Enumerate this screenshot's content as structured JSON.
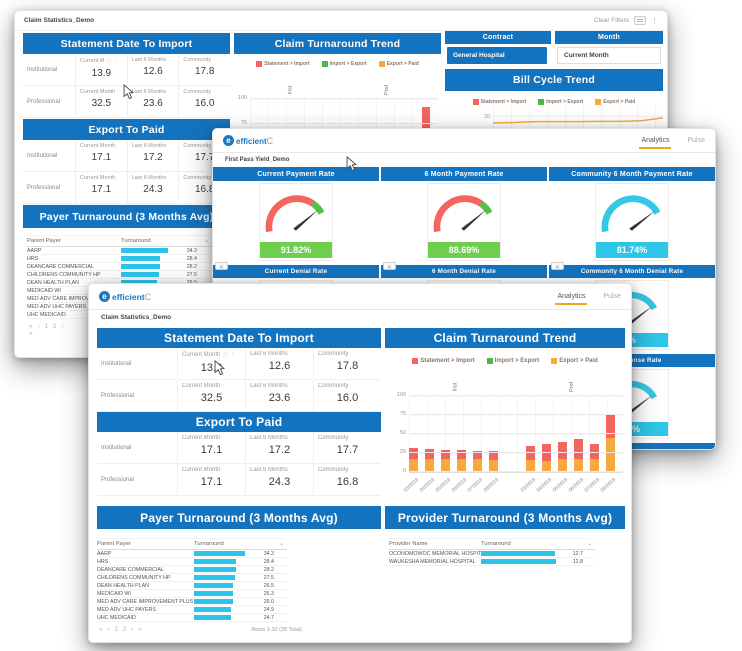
{
  "colors": {
    "header_blue": "#1473BE",
    "bar_cyan": "#2BC4E8",
    "red": "#F4655F",
    "green": "#4CB648",
    "orange": "#F5A93F",
    "badge_green": "#6FCE4E",
    "badge_cyan": "#2EC6E8",
    "tab_underline": "#F2A71B"
  },
  "brand": {
    "icon": "e",
    "name": "efficient",
    "suffix": "C"
  },
  "tabs": {
    "analytics": "Analytics",
    "pulse": "Pulse"
  },
  "icons": {
    "info": "ⓘ",
    "kebab": "⋮",
    "sort": "⌄",
    "menu_kebab": "⋮"
  },
  "shared": {
    "statement_title": "Statement Date To Import",
    "export_title": "Export To Paid",
    "payer_title": "Payer Turnaround (3 Months Avg)",
    "provider_title": "Provider Turnaround (3 Months Avg)",
    "trend_title": "Claim Turnaround Trend",
    "labels": {
      "institutional": "Institutional",
      "professional": "Professional",
      "current_month": "Current Month",
      "current_month_short": "Current M",
      "last_6_months": "Last 6 Months",
      "community": "Community"
    },
    "statement": {
      "inst": [
        "13.9",
        "12.6",
        "17.8"
      ],
      "prof": [
        "32.5",
        "23.6",
        "16.0"
      ]
    },
    "export": {
      "inst": [
        "17.1",
        "17.2",
        "17.7"
      ],
      "prof": [
        "17.1",
        "24.3",
        "16.8"
      ]
    },
    "legend": [
      {
        "label": "Statement > Import",
        "color": "#F4655F"
      },
      {
        "label": "Import > Export",
        "color": "#4CB648"
      },
      {
        "label": "Export > Paid",
        "color": "#F5A93F"
      }
    ],
    "payer": {
      "name_header": "Parent Payer",
      "value_header": "Turnaround",
      "rows": [
        {
          "name": "AARP",
          "value": "34.3"
        },
        {
          "name": "HRS",
          "value": "28.4"
        },
        {
          "name": "DEANCARE COMMERCIAL",
          "value": "28.2"
        },
        {
          "name": "CHILDRENS COMMUNITY HP",
          "value": "27.5"
        },
        {
          "name": "DEAN HEALTH PLAN",
          "value": "26.5"
        },
        {
          "name": "MEDICAID WI",
          "value": "26.3"
        },
        {
          "name": "MED ADV CARE IMPROVEMENT PLUS",
          "value": "26.0"
        },
        {
          "name": "MED ADV UHC PAYERS",
          "value": "24.9"
        },
        {
          "name": "UHC MEDICAID",
          "value": "24.7"
        }
      ],
      "pager": "«  ‹  1  2  ›  »",
      "rows_info": "Rows 1-10 (28 Total)"
    },
    "provider": {
      "name_header": "Provider Name",
      "value_header": "Turnaround",
      "rows": [
        {
          "name": "OCONOMOWOC MEMORIAL HOSPITAL",
          "value": "12.7"
        },
        {
          "name": "WAUKESHA MEMORIAL HOSPITAL",
          "value": "12.8"
        }
      ]
    }
  },
  "back_window": {
    "title": "Claim Statistics_Demo",
    "clear_filters": "Clear Filters",
    "contract_label": "Contract",
    "contract_value": "General Hospital",
    "month_label": "Month",
    "month_value": "Current Month",
    "bill_cycle_title": "Bill Cycle Trend"
  },
  "middle_window": {
    "title": "First Pass Yield_Demo",
    "payment_headers": [
      "Current Payment Rate",
      "6 Month Payment Rate",
      "Community 6 Month Payment Rate"
    ],
    "payment_values": [
      "91.82%",
      "88.69%",
      "81.74%"
    ],
    "denial_headers": [
      "Current Denial Rate",
      "6 Month Denial Rate",
      "Community 6 Month Denial Rate"
    ],
    "denial_values": [
      "",
      "",
      "%"
    ],
    "response_headers": [
      "",
      "",
      "No Response Rate"
    ],
    "response_values": [
      "",
      "",
      "9%"
    ]
  },
  "front_window": {
    "title": "Claim Statistics_Demo"
  },
  "chart_data": [
    {
      "id": "front-claim-trend",
      "type": "stacked-bar",
      "title": "Claim Turnaround Trend",
      "group_labels": [
        "Inst",
        "Prof"
      ],
      "categories": [
        "03/2019",
        "04/2019",
        "05/2019",
        "06/2019",
        "07/2019",
        "08/2019",
        "03/2019",
        "04/2019",
        "05/2019",
        "06/2019",
        "07/2019",
        "08/2019"
      ],
      "series": [
        {
          "name": "Export > Paid",
          "color": "#F5A93F",
          "values": [
            17,
            17,
            17,
            17,
            17,
            16,
            16,
            14,
            17,
            17,
            17,
            45
          ]
        },
        {
          "name": "Statement > Import",
          "color": "#F4655F",
          "values": [
            14,
            13,
            12,
            12,
            11,
            11,
            18,
            23,
            23,
            27,
            20,
            31
          ]
        },
        {
          "name": "Import > Export",
          "color": "#4CB648",
          "values": [
            0,
            0,
            0,
            0,
            0,
            0,
            0,
            0,
            0,
            0,
            0,
            0
          ]
        }
      ],
      "ylim": [
        0,
        100
      ],
      "yticks": [
        0,
        25,
        50,
        75,
        100
      ],
      "legend_position": "top",
      "grid": true
    },
    {
      "id": "back-claim-trend",
      "type": "stacked-bar",
      "title": "Claim Turnaround Trend",
      "group_labels": [
        "Inst",
        "Prof"
      ],
      "categories": [
        "",
        "",
        "",
        "",
        "",
        "",
        "",
        "",
        "",
        "",
        "",
        ""
      ],
      "series": [
        {
          "name": "Statement > Import",
          "color": "#F4655F",
          "values": [
            null,
            null,
            null,
            null,
            null,
            null,
            null,
            null,
            null,
            null,
            null,
            92
          ]
        }
      ],
      "ylim": [
        0,
        100
      ],
      "yticks": [
        0,
        25,
        50,
        75,
        100
      ],
      "grid": true
    },
    {
      "id": "bill-cycle-trend",
      "type": "line",
      "title": "Bill Cycle Trend",
      "series": [
        {
          "name": "Export > Paid",
          "color": "#F5A93F",
          "values": [
            17,
            17.2,
            17.6,
            17.6,
            17.6,
            17.7,
            17.7,
            18,
            19.3
          ]
        }
      ],
      "ylim": [
        0,
        25
      ],
      "yticks": [
        20
      ],
      "grid": true
    }
  ]
}
